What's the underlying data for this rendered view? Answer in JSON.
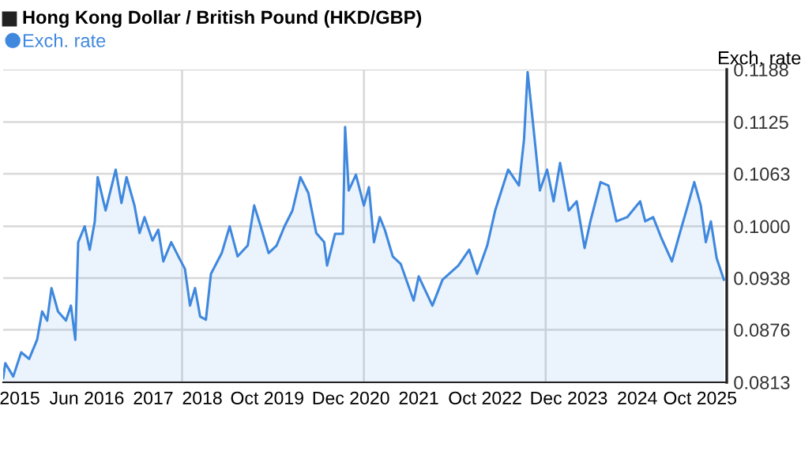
{
  "chart_data": {
    "type": "area",
    "title": "Hong Kong Dollar / British Pound (HKD/GBP)",
    "ylabel": "Exch. rate",
    "x": [
      2015.17,
      2015.2,
      2015.31,
      2015.42,
      2015.53,
      2015.64,
      2015.71,
      2015.78,
      2015.84,
      2015.93,
      2016.04,
      2016.11,
      2016.17,
      2016.21,
      2016.3,
      2016.37,
      2016.44,
      2016.48,
      2016.59,
      2016.73,
      2016.81,
      2016.88,
      2016.99,
      2017.06,
      2017.13,
      2017.24,
      2017.32,
      2017.39,
      2017.5,
      2017.61,
      2017.69,
      2017.76,
      2017.83,
      2017.9,
      2017.98,
      2018.05,
      2018.2,
      2018.31,
      2018.42,
      2018.56,
      2018.65,
      2018.74,
      2018.85,
      2018.96,
      2019.07,
      2019.18,
      2019.29,
      2019.4,
      2019.51,
      2019.62,
      2019.66,
      2019.77,
      2019.88,
      2019.91,
      2019.96,
      2020.06,
      2020.17,
      2020.24,
      2020.31,
      2020.39,
      2020.46,
      2020.57,
      2020.68,
      2020.86,
      2020.93,
      2021.12,
      2021.26,
      2021.48,
      2021.63,
      2021.74,
      2021.88,
      2021.99,
      2022.17,
      2022.32,
      2022.39,
      2022.44,
      2022.52,
      2022.61,
      2022.71,
      2022.8,
      2022.89,
      2023.01,
      2023.12,
      2023.23,
      2023.31,
      2023.45,
      2023.56,
      2023.67,
      2023.82,
      2024.0,
      2024.07,
      2024.18,
      2024.29,
      2024.44,
      2024.55,
      2024.66,
      2024.75,
      2024.84,
      2024.91,
      2024.98,
      2025.06,
      2025.16
    ],
    "series": [
      {
        "name": "Exch. rate",
        "color": "#3f88de",
        "values": [
          0.0818,
          0.0836,
          0.082,
          0.0849,
          0.0841,
          0.0864,
          0.0898,
          0.0887,
          0.0926,
          0.0898,
          0.0887,
          0.0905,
          0.0864,
          0.0981,
          0.1,
          0.0972,
          0.1006,
          0.1059,
          0.1019,
          0.1068,
          0.1028,
          0.1059,
          0.1025,
          0.0992,
          0.1011,
          0.0983,
          0.0996,
          0.0958,
          0.0981,
          0.0962,
          0.0949,
          0.0905,
          0.0926,
          0.0892,
          0.0888,
          0.0943,
          0.0968,
          0.1,
          0.0964,
          0.0977,
          0.1025,
          0.1,
          0.0968,
          0.0977,
          0.1,
          0.1019,
          0.1059,
          0.104,
          0.0992,
          0.0981,
          0.0953,
          0.0991,
          0.0991,
          0.1119,
          0.1043,
          0.1062,
          0.1025,
          0.1047,
          0.0981,
          0.1011,
          0.0996,
          0.0964,
          0.0955,
          0.0911,
          0.094,
          0.0905,
          0.0936,
          0.0953,
          0.0972,
          0.0943,
          0.0977,
          0.1019,
          0.1068,
          0.1049,
          0.1104,
          0.1185,
          0.1119,
          0.1043,
          0.1068,
          0.103,
          0.1076,
          0.1019,
          0.103,
          0.0974,
          0.1006,
          0.1053,
          0.1049,
          0.1006,
          0.1011,
          0.103,
          0.1006,
          0.1011,
          0.0987,
          0.0958,
          0.0992,
          0.1025,
          0.1053,
          0.1025,
          0.0981,
          0.1006,
          0.0962,
          0.0936
        ]
      }
    ],
    "xlim": [
      2015.17,
      2025.2
    ],
    "xticks": [
      {
        "value": 2015.4,
        "label": "2015"
      },
      {
        "value": 2016.33,
        "label": "Jun 2016"
      },
      {
        "value": 2017.25,
        "label": "2017"
      },
      {
        "value": 2017.65,
        "label": null
      },
      {
        "value": 2017.93,
        "label": "2018"
      },
      {
        "value": 2018.83,
        "label": "Oct 2019"
      },
      {
        "value": 2019.99,
        "label": "Dec 2020"
      },
      {
        "value": 2020.17,
        "label": null
      },
      {
        "value": 2020.93,
        "label": "2021"
      },
      {
        "value": 2021.85,
        "label": "Oct 2022"
      },
      {
        "value": 2022.69,
        "label": null
      },
      {
        "value": 2023.01,
        "label": "Dec 2023"
      },
      {
        "value": 2023.96,
        "label": "2024"
      },
      {
        "value": 2024.83,
        "label": "Oct 2025"
      }
    ],
    "ylim": [
      0.0813,
      0.1188
    ],
    "yticks": [
      {
        "value": 0.0813,
        "label": "0.0813"
      },
      {
        "value": 0.0876,
        "label": "0.0876"
      },
      {
        "value": 0.0938,
        "label": "0.0938"
      },
      {
        "value": 0.1,
        "label": "0.1000"
      },
      {
        "value": 0.1063,
        "label": "0.1063"
      },
      {
        "value": 0.1125,
        "label": "0.1125"
      },
      {
        "value": 0.1188,
        "label": "0.1188"
      }
    ],
    "grid": true,
    "legend": "top left",
    "marker": "none",
    "line_style": "solid"
  }
}
